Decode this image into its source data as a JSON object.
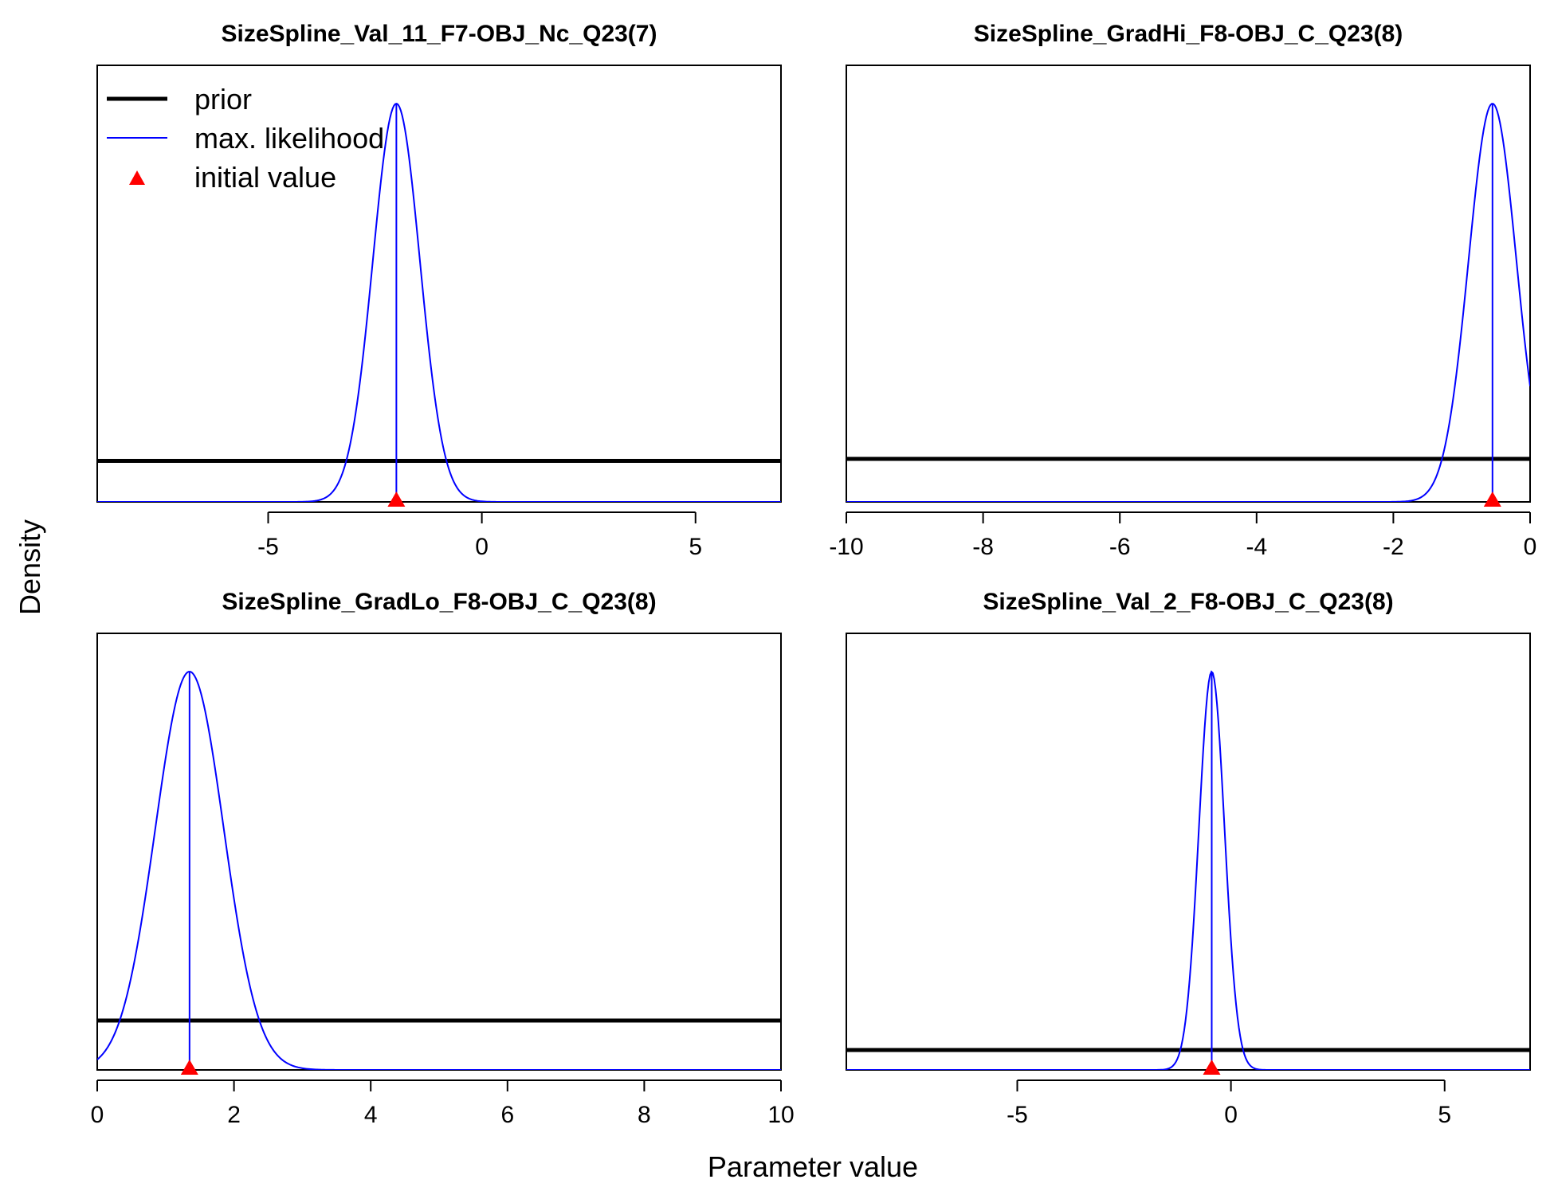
{
  "figure": {
    "ylabel": "Density",
    "xlabel": "Parameter value"
  },
  "legend": {
    "items": [
      {
        "label": "prior",
        "color": "#000000",
        "kind": "thick-line"
      },
      {
        "label": "max. likelihood",
        "color": "#0000ff",
        "kind": "thin-line"
      },
      {
        "label": "initial value",
        "color": "#ff0000",
        "kind": "triangle"
      }
    ],
    "placement": "top-left of first panel"
  },
  "chart_data": [
    {
      "type": "line",
      "title": "SizeSpline_Val_11_F7-OBJ_Nc_Q23(7)",
      "xlim": [
        -9,
        7
      ],
      "xticks": [
        -5,
        0,
        5
      ],
      "tick_labels": [
        "-5",
        "0",
        "5"
      ],
      "prior_density_rel": 0.103,
      "mle": -2.0,
      "sd": 0.55,
      "initial_value": -2.0,
      "series": [
        {
          "name": "prior",
          "color": "#000000"
        },
        {
          "name": "max. likelihood",
          "color": "#0000ff"
        },
        {
          "name": "initial value",
          "color": "#ff0000"
        }
      ]
    },
    {
      "type": "line",
      "title": "SizeSpline_GradHi_F8-OBJ_C_Q23(8)",
      "xlim": [
        -10,
        0
      ],
      "xticks": [
        -10,
        -8,
        -6,
        -4,
        -2,
        0
      ],
      "tick_labels": [
        "-10",
        "-8",
        "-6",
        "-4",
        "-2",
        "0"
      ],
      "prior_density_rel": 0.108,
      "mle": -0.55,
      "sd": 0.35,
      "initial_value": -0.55,
      "series": [
        {
          "name": "prior",
          "color": "#000000"
        },
        {
          "name": "max. likelihood",
          "color": "#0000ff"
        },
        {
          "name": "initial value",
          "color": "#ff0000"
        }
      ]
    },
    {
      "type": "line",
      "title": "SizeSpline_GradLo_F8-OBJ_C_Q23(8)",
      "xlim": [
        0,
        10
      ],
      "xticks": [
        0,
        2,
        4,
        6,
        8,
        10
      ],
      "tick_labels": [
        "0",
        "2",
        "4",
        "6",
        "8",
        "10"
      ],
      "prior_density_rel": 0.124,
      "mle": 1.35,
      "sd": 0.5,
      "initial_value": 1.35,
      "series": [
        {
          "name": "prior",
          "color": "#000000"
        },
        {
          "name": "max. likelihood",
          "color": "#0000ff"
        },
        {
          "name": "initial value",
          "color": "#ff0000"
        }
      ]
    },
    {
      "type": "line",
      "title": "SizeSpline_Val_2_F8-OBJ_C_Q23(8)",
      "xlim": [
        -9,
        7
      ],
      "xticks": [
        -5,
        0,
        5
      ],
      "tick_labels": [
        "-5",
        "0",
        "5"
      ],
      "prior_density_rel": 0.05,
      "mle": -0.45,
      "sd": 0.3,
      "initial_value": -0.45,
      "series": [
        {
          "name": "prior",
          "color": "#000000"
        },
        {
          "name": "max. likelihood",
          "color": "#0000ff"
        },
        {
          "name": "initial value",
          "color": "#ff0000"
        }
      ]
    }
  ]
}
